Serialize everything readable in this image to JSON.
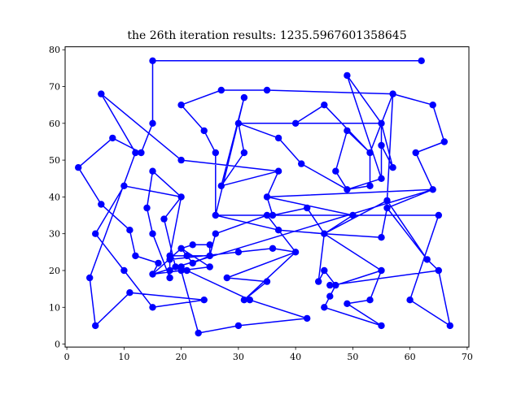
{
  "chart_data": {
    "type": "line",
    "title": "the 26th iteration results: 1235.5967601358645",
    "xlabel": "",
    "ylabel": "",
    "xlim": [
      -0.3,
      70.3
    ],
    "ylim": [
      -0.8,
      80.8
    ],
    "xticks": [
      0,
      10,
      20,
      30,
      40,
      50,
      60,
      70
    ],
    "yticks": [
      0,
      10,
      20,
      30,
      40,
      50,
      60,
      70,
      80
    ],
    "grid": false,
    "legend": "none",
    "series": [
      {
        "color": "#0000ff",
        "marker": "circle",
        "points": [
          [
            15,
            77
          ],
          [
            62,
            77
          ],
          [
            15,
            60
          ],
          [
            15,
            77
          ]
        ],
        "path": [
          [
            15,
            60
          ],
          [
            15,
            77
          ],
          [
            62,
            77
          ]
        ]
      }
    ],
    "tour": [
      [
        62,
        77
      ],
      [
        15,
        77
      ],
      [
        15,
        60
      ],
      [
        13,
        52
      ],
      [
        8,
        56
      ],
      [
        2,
        48
      ],
      [
        6,
        38
      ],
      [
        11,
        31
      ],
      [
        12,
        24
      ],
      [
        16,
        22
      ],
      [
        15,
        19
      ],
      [
        20,
        26
      ],
      [
        22,
        27
      ],
      [
        25,
        27
      ],
      [
        25,
        24
      ],
      [
        22,
        22
      ],
      [
        21,
        24
      ],
      [
        18,
        24
      ],
      [
        25,
        24
      ],
      [
        26,
        30
      ],
      [
        35,
        35
      ],
      [
        37,
        31
      ],
      [
        40,
        25
      ],
      [
        31,
        12
      ],
      [
        35,
        17
      ],
      [
        28,
        18
      ],
      [
        40,
        25
      ],
      [
        36,
        26
      ],
      [
        30,
        25
      ],
      [
        18,
        23
      ],
      [
        18,
        20
      ],
      [
        19,
        21
      ],
      [
        20,
        20
      ],
      [
        23,
        3
      ],
      [
        30,
        5
      ],
      [
        42,
        7
      ],
      [
        32,
        12
      ],
      [
        21,
        20
      ],
      [
        20,
        21
      ],
      [
        19,
        21
      ],
      [
        17,
        34
      ],
      [
        20,
        40
      ],
      [
        18,
        24
      ],
      [
        18,
        18
      ],
      [
        15,
        30
      ],
      [
        14,
        37
      ],
      [
        15,
        47
      ],
      [
        20,
        40
      ],
      [
        10,
        43
      ],
      [
        5,
        30
      ],
      [
        10,
        20
      ],
      [
        15,
        10
      ],
      [
        24,
        12
      ],
      [
        11,
        14
      ],
      [
        5,
        5
      ],
      [
        4,
        18
      ],
      [
        12,
        52
      ],
      [
        6,
        68
      ],
      [
        20,
        50
      ],
      [
        37,
        47
      ],
      [
        27,
        43
      ],
      [
        31,
        52
      ],
      [
        30,
        60
      ],
      [
        40,
        60
      ],
      [
        45,
        65
      ],
      [
        53,
        52
      ],
      [
        53,
        43
      ],
      [
        49,
        42
      ],
      [
        55,
        45
      ],
      [
        55,
        54
      ],
      [
        57,
        48
      ],
      [
        55,
        60
      ],
      [
        49,
        73
      ],
      [
        55,
        45
      ],
      [
        55,
        60
      ],
      [
        30,
        60
      ],
      [
        37,
        56
      ],
      [
        41,
        49
      ],
      [
        49,
        42
      ],
      [
        47,
        47
      ],
      [
        49,
        58
      ],
      [
        53,
        52
      ],
      [
        57,
        68
      ],
      [
        64,
        65
      ],
      [
        66,
        55
      ],
      [
        61,
        52
      ],
      [
        64,
        42
      ],
      [
        35,
        40
      ],
      [
        36,
        35
      ],
      [
        42,
        37
      ],
      [
        45,
        30
      ],
      [
        56,
        39
      ],
      [
        56,
        37
      ],
      [
        55,
        29
      ],
      [
        45,
        30
      ],
      [
        44,
        17
      ],
      [
        45,
        20
      ],
      [
        47,
        16
      ],
      [
        46,
        13
      ],
      [
        45,
        10
      ],
      [
        55,
        5
      ],
      [
        49,
        11
      ],
      [
        53,
        12
      ],
      [
        55,
        20
      ],
      [
        45,
        30
      ],
      [
        37,
        31
      ],
      [
        26,
        35
      ],
      [
        26,
        52
      ],
      [
        24,
        58
      ],
      [
        20,
        65
      ],
      [
        27,
        69
      ],
      [
        35,
        69
      ],
      [
        57,
        68
      ],
      [
        56,
        39
      ],
      [
        63,
        23
      ],
      [
        65,
        20
      ],
      [
        46,
        16
      ],
      [
        47,
        16
      ],
      [
        55,
        20
      ],
      [
        45,
        30
      ],
      [
        50,
        35
      ],
      [
        35,
        35
      ],
      [
        26,
        35
      ],
      [
        31,
        67
      ],
      [
        27,
        43
      ],
      [
        37,
        47
      ],
      [
        35,
        40
      ],
      [
        50,
        35
      ],
      [
        65,
        35
      ],
      [
        60,
        12
      ],
      [
        67,
        5
      ],
      [
        65,
        20
      ],
      [
        63,
        23
      ],
      [
        56,
        37
      ],
      [
        64,
        42
      ],
      [
        15,
        19
      ],
      [
        25,
        21
      ],
      [
        20,
        26
      ],
      [
        21,
        24
      ],
      [
        22,
        22
      ]
    ]
  }
}
